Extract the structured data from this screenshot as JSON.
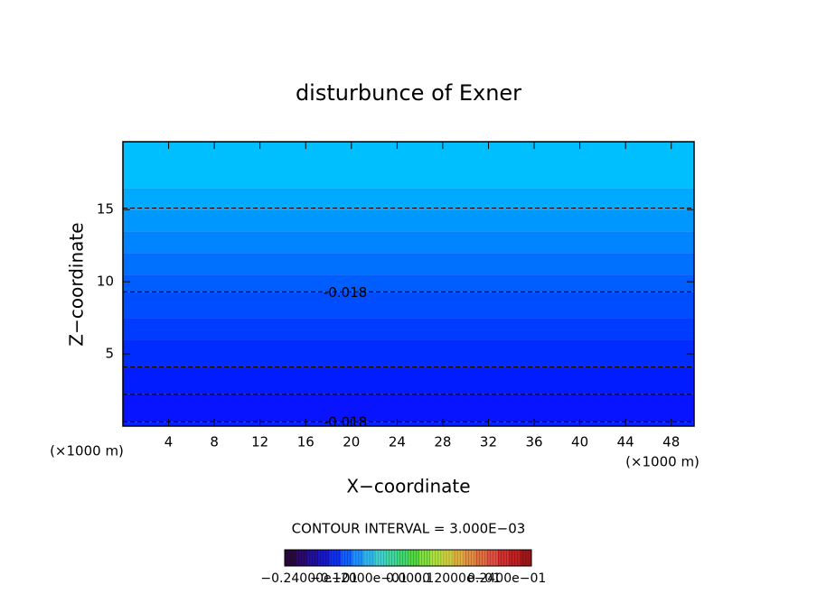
{
  "chart_data": {
    "type": "contour",
    "title": "disturbunce of Exner",
    "xlabel": "X−coordinate",
    "ylabel": "Z−coordinate",
    "x_unit": "(×1000 m)",
    "xlim": [
      0,
      50
    ],
    "ylim": [
      0,
      19.7
    ],
    "xticks": [
      4,
      8,
      12,
      16,
      20,
      24,
      28,
      32,
      36,
      40,
      44,
      48
    ],
    "yticks": [
      5,
      10,
      15
    ],
    "fill_bands": {
      "bounds": [
        0,
        0.3,
        2.2,
        4.1,
        6,
        7.5,
        9.3,
        10.5,
        12,
        13.5,
        15,
        16.5,
        19.7
      ],
      "colors": [
        "#0024ff",
        "#0814ff",
        "#001cff",
        "#002cff",
        "#003cff",
        "#004cff",
        "#005eff",
        "#0070ff",
        "#0084ff",
        "#0098ff",
        "#00abff",
        "#00bfff"
      ]
    },
    "contour_lines": [
      {
        "y": 0.3,
        "label": "-0.018"
      },
      {
        "y": 2.2
      },
      {
        "y": 4.1
      },
      {
        "y": 9.3,
        "label": "-0.018"
      },
      {
        "y": 15.1
      }
    ],
    "contour_interval": "CONTOUR INTERVAL = 3.000E−03",
    "colorbar": {
      "clim": [
        -0.03,
        0.03
      ],
      "colors": [
        "#2a0a3a",
        "#2a0a6a",
        "#20109a",
        "#1818c8",
        "#1030f0",
        "#1060ff",
        "#2090ff",
        "#30b8f0",
        "#40d0d0",
        "#40d8a0",
        "#40d870",
        "#50d840",
        "#80e040",
        "#b0e040",
        "#d0d040",
        "#e0b040",
        "#e09040",
        "#e07040",
        "#e05040",
        "#d03030",
        "#c02020",
        "#a01818"
      ],
      "ticks": [
        {
          "value": -0.024,
          "label": "−0.24000e−01"
        },
        {
          "value": -0.012,
          "label": "−0.12000e−01"
        },
        {
          "value": 0,
          "label": "0.0000"
        },
        {
          "value": 0.012,
          "label": "0.12000e−01"
        },
        {
          "value": 0.024,
          "label": "0.2400e−01"
        }
      ]
    }
  }
}
